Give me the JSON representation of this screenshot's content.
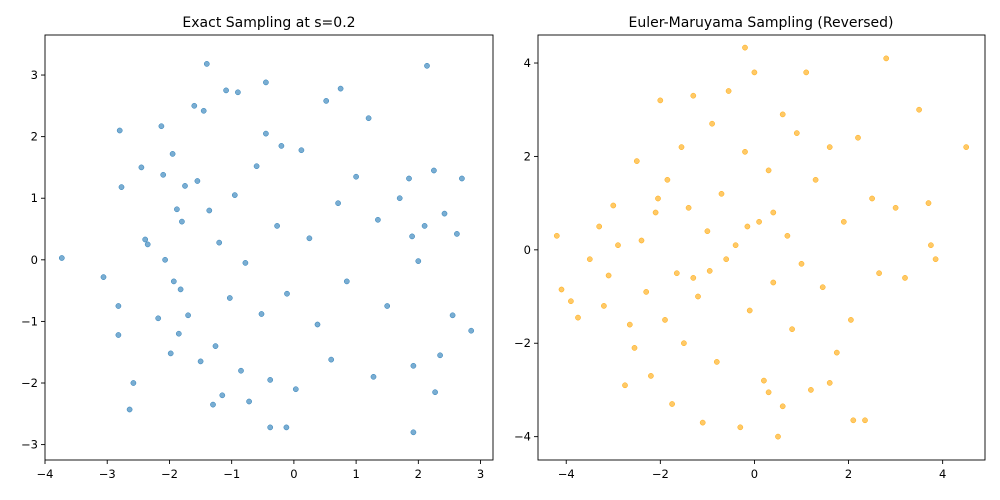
{
  "chart_data": [
    {
      "type": "scatter",
      "title": "Exact Sampling at s=0.2",
      "xlabel": "",
      "ylabel": "",
      "xlim": [
        -4.0,
        3.2
      ],
      "ylim": [
        -3.25,
        3.65
      ],
      "xticks": [
        -4,
        -3,
        -2,
        -1,
        0,
        1,
        2,
        3
      ],
      "yticks": [
        -3,
        -2,
        -1,
        0,
        1,
        2,
        3
      ],
      "xtick_labels": [
        "−4",
        "−3",
        "−2",
        "−1",
        "0",
        "1",
        "2",
        "3"
      ],
      "ytick_labels": [
        "−3",
        "−2",
        "−1",
        "0",
        "1",
        "2",
        "3"
      ],
      "marker_color": "#1f77b4",
      "marker_alpha": 0.6,
      "grid": false,
      "points": {
        "x": [
          -3.73,
          -3.06,
          -2.82,
          -2.82,
          -2.8,
          -2.77,
          -2.64,
          -2.58,
          -2.45,
          -2.39,
          -2.35,
          -2.18,
          -2.13,
          -2.1,
          -2.07,
          -1.98,
          -1.95,
          -1.93,
          -1.88,
          -1.85,
          -1.82,
          -1.8,
          -1.75,
          -1.7,
          -1.6,
          -1.55,
          -1.5,
          -1.45,
          -1.4,
          -1.36,
          -1.3,
          -1.26,
          -1.2,
          -1.15,
          -1.09,
          -1.03,
          -0.95,
          -0.9,
          -0.85,
          -0.78,
          -0.72,
          -0.6,
          -0.52,
          -0.45,
          -0.38,
          -0.27,
          -0.2,
          -0.11,
          0.03,
          0.12,
          0.25,
          0.38,
          0.52,
          0.6,
          0.71,
          0.85,
          1.0,
          1.2,
          1.28,
          1.35,
          1.5,
          1.7,
          1.85,
          1.9,
          1.92,
          2.0,
          2.1,
          2.14,
          2.25,
          2.35,
          2.42,
          2.55,
          2.62,
          2.7,
          2.85,
          -0.38,
          -0.12,
          -0.45,
          0.75,
          2.27,
          1.92
        ],
        "y": [
          0.03,
          -0.28,
          -0.75,
          -1.22,
          2.1,
          1.18,
          -2.43,
          -2.0,
          1.5,
          0.33,
          0.25,
          -0.95,
          2.17,
          1.38,
          0.0,
          -1.52,
          1.72,
          -0.35,
          0.82,
          -1.2,
          -0.48,
          0.62,
          1.2,
          -0.9,
          2.5,
          1.28,
          -1.65,
          2.42,
          3.18,
          0.8,
          -2.35,
          -1.4,
          0.28,
          -2.2,
          2.75,
          -0.62,
          1.05,
          2.72,
          -1.8,
          -0.05,
          -2.3,
          1.52,
          -0.88,
          2.05,
          -1.95,
          0.55,
          1.85,
          -0.55,
          -2.1,
          1.78,
          0.35,
          -1.05,
          2.58,
          -1.62,
          0.92,
          -0.35,
          1.35,
          2.3,
          -1.9,
          0.65,
          -0.75,
          1.0,
          1.32,
          0.38,
          -1.72,
          -0.02,
          0.55,
          3.15,
          1.45,
          -1.55,
          0.75,
          -0.9,
          0.42,
          1.32,
          -1.15,
          -2.72,
          -2.72,
          2.88,
          2.78,
          -2.15,
          -2.8
        ]
      }
    },
    {
      "type": "scatter",
      "title": "Euler-Maruyama Sampling (Reversed)",
      "xlabel": "",
      "ylabel": "",
      "xlim": [
        -4.6,
        4.9
      ],
      "ylim": [
        -4.5,
        4.6
      ],
      "xticks": [
        -4,
        -2,
        0,
        2,
        4
      ],
      "yticks": [
        -4,
        -2,
        0,
        2,
        4
      ],
      "xtick_labels": [
        "−4",
        "−2",
        "0",
        "2",
        "4"
      ],
      "ytick_labels": [
        "−4",
        "−2",
        "0",
        "2",
        "4"
      ],
      "marker_color": "#ffa500",
      "marker_alpha": 0.6,
      "grid": false,
      "points": {
        "x": [
          -4.2,
          -4.1,
          -3.9,
          -3.75,
          -3.5,
          -3.3,
          -3.2,
          -3.1,
          -3.0,
          -2.9,
          -2.75,
          -2.65,
          -2.55,
          -2.5,
          -2.4,
          -2.3,
          -2.2,
          -2.1,
          -2.0,
          -1.9,
          -1.85,
          -1.75,
          -1.65,
          -1.55,
          -1.5,
          -1.4,
          -1.3,
          -1.2,
          -1.1,
          -1.0,
          -0.9,
          -0.8,
          -0.7,
          -0.6,
          -0.55,
          -0.4,
          -0.3,
          -0.2,
          -0.1,
          0.0,
          0.1,
          0.2,
          0.3,
          0.4,
          0.5,
          0.6,
          0.7,
          0.8,
          0.9,
          1.0,
          1.1,
          1.2,
          1.3,
          1.45,
          1.6,
          1.75,
          1.9,
          2.05,
          2.2,
          2.35,
          2.5,
          2.65,
          2.8,
          3.0,
          3.2,
          3.5,
          3.7,
          3.75,
          3.85,
          4.5,
          0.6,
          -0.2,
          0.3,
          1.6,
          -2.05,
          -0.15,
          2.1,
          -1.3,
          0.4,
          -0.95
        ],
        "y": [
          0.3,
          -0.85,
          -1.1,
          -1.45,
          -0.2,
          0.5,
          -1.2,
          -0.55,
          0.95,
          0.1,
          -2.9,
          -1.6,
          -2.1,
          1.9,
          0.2,
          -0.9,
          -2.7,
          0.8,
          3.2,
          -1.5,
          1.5,
          -3.3,
          -0.5,
          2.2,
          -2.0,
          0.9,
          3.3,
          -1.0,
          -3.7,
          0.4,
          2.7,
          -2.4,
          1.2,
          -0.2,
          3.4,
          0.1,
          -3.8,
          2.1,
          -1.3,
          3.8,
          0.6,
          -2.8,
          1.7,
          -0.7,
          -4.0,
          2.9,
          0.3,
          -1.7,
          2.5,
          -0.3,
          3.8,
          -3.0,
          1.5,
          -0.8,
          2.2,
          -2.2,
          0.6,
          -1.5,
          2.4,
          -3.65,
          1.1,
          -0.5,
          4.1,
          0.9,
          -0.6,
          3.0,
          1.0,
          0.1,
          -0.2,
          2.2,
          -3.35,
          4.33,
          -3.05,
          -2.85,
          1.1,
          0.5,
          -3.65,
          -0.6,
          0.8,
          -0.45
        ]
      }
    }
  ]
}
